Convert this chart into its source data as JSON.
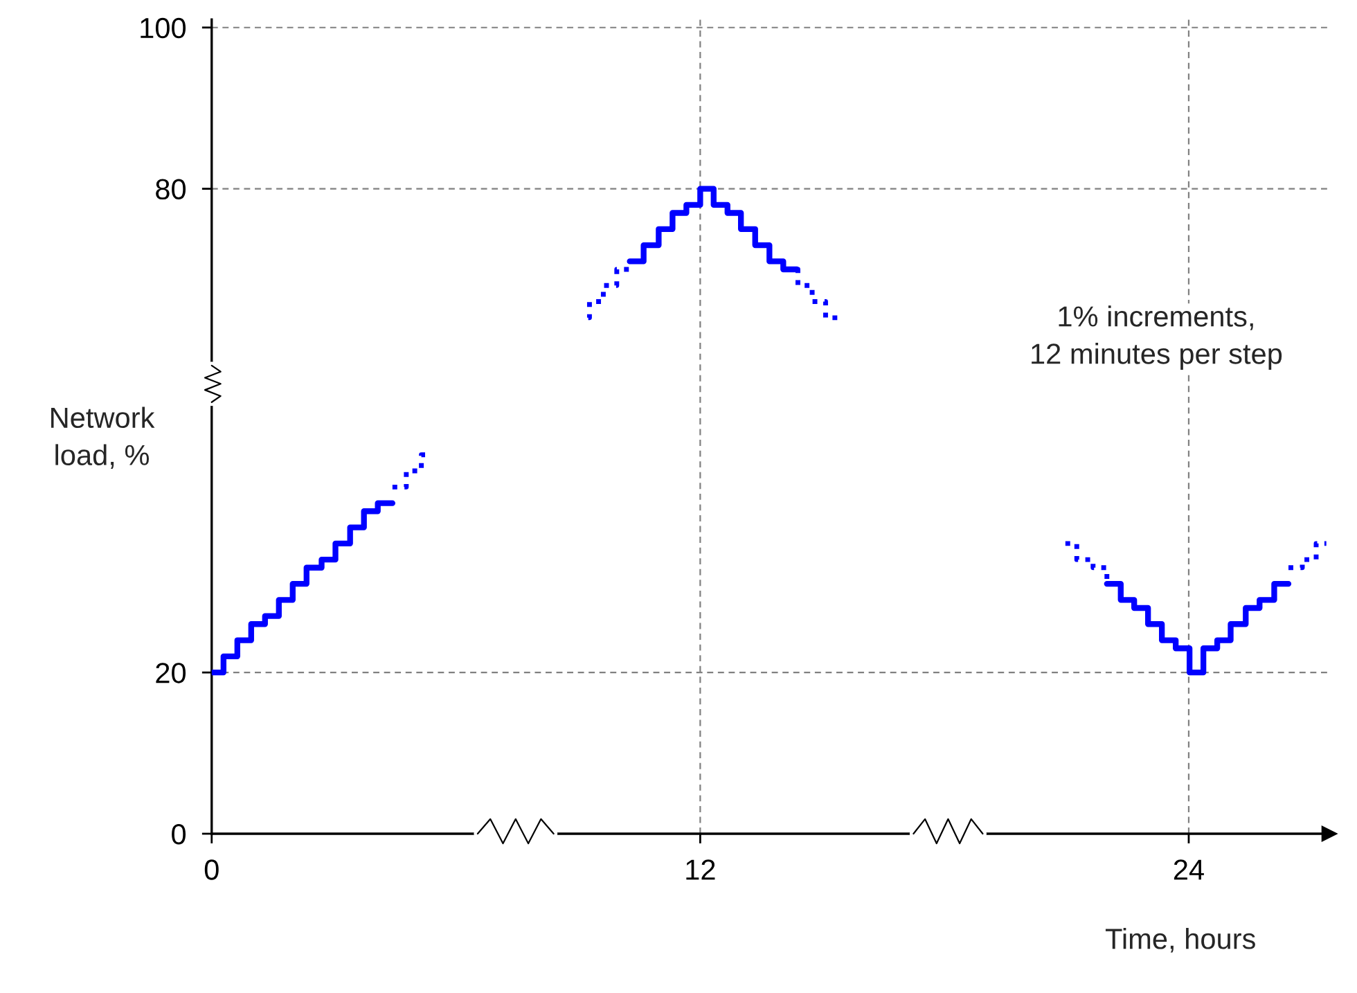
{
  "chart_data": {
    "type": "step",
    "xlabel": "Time, hours",
    "ylabel": "Network\nload, %",
    "annotations": [
      "1% increments,\n12 minutes per step"
    ],
    "xlim": [
      0,
      27.45
    ],
    "ylim": [
      0,
      101
    ],
    "xticks": [
      0,
      12,
      24
    ],
    "yticks": [
      0,
      20,
      80,
      100
    ],
    "grid": false,
    "ref_lines": [
      {
        "axis": "y",
        "value": 20,
        "color": "#808080",
        "line_style": "dashed"
      },
      {
        "axis": "y",
        "value": 80,
        "color": "#808080",
        "line_style": "dashed"
      },
      {
        "axis": "y",
        "value": 100,
        "color": "#808080",
        "line_style": "dashed"
      },
      {
        "axis": "x",
        "value": 12,
        "color": "#808080",
        "line_style": "dashed"
      },
      {
        "axis": "x",
        "value": 24,
        "color": "#808080",
        "line_style": "dashed"
      }
    ],
    "series": [
      {
        "color": "#0000ff",
        "line_style": "solid",
        "x": [
          0,
          0.29,
          0.63,
          0.97,
          1.31,
          1.65,
          1.99,
          2.33,
          2.7,
          3.04,
          3.4,
          3.74,
          4.08,
          4.44
        ],
        "values": [
          20,
          22,
          24,
          26,
          27,
          29,
          31,
          33,
          34,
          36,
          38,
          40,
          41,
          41
        ]
      },
      {
        "color": "#0000ff",
        "line_style": "dotted",
        "x": [
          4.44,
          4.78,
          5.15,
          5.38
        ],
        "values": [
          43,
          45,
          47,
          47
        ]
      },
      {
        "color": "#0000ff",
        "line_style": "dotted",
        "x": [
          9.25,
          9.28,
          9.62,
          9.95,
          10.27
        ],
        "values": [
          64,
          66,
          68,
          70,
          71
        ]
      },
      {
        "color": "#0000ff",
        "line_style": "solid",
        "x": [
          10.27,
          10.61,
          10.98,
          11.32,
          11.66,
          12.0,
          12.33,
          12.67,
          13.0,
          13.35,
          13.7,
          14.04,
          14.37
        ],
        "values": [
          71,
          73,
          75,
          77,
          78,
          80,
          78,
          77,
          75,
          73,
          71,
          70,
          70
        ]
      },
      {
        "color": "#0000ff",
        "line_style": "dotted",
        "x": [
          14.37,
          14.4,
          14.75,
          15.08,
          15.42
        ],
        "values": [
          70,
          68,
          66,
          64,
          64
        ]
      },
      {
        "color": "#0000ff",
        "line_style": "dotted",
        "x": [
          20.97,
          21.25,
          21.65,
          21.99
        ],
        "values": [
          36,
          34,
          33,
          31
        ]
      },
      {
        "color": "#0000ff",
        "line_style": "solid",
        "x": [
          21.99,
          22.33,
          22.66,
          23.0,
          23.34,
          23.68,
          24.02,
          24.36,
          24.7,
          25.03,
          25.4,
          25.74,
          26.1,
          26.45
        ],
        "values": [
          31,
          29,
          28,
          26,
          24,
          23,
          20,
          23,
          24,
          26,
          28,
          29,
          31,
          31
        ]
      },
      {
        "color": "#0000ff",
        "line_style": "dotted",
        "x": [
          26.45,
          26.79,
          27.13,
          27.38
        ],
        "values": [
          33,
          34,
          36,
          36
        ]
      }
    ]
  }
}
